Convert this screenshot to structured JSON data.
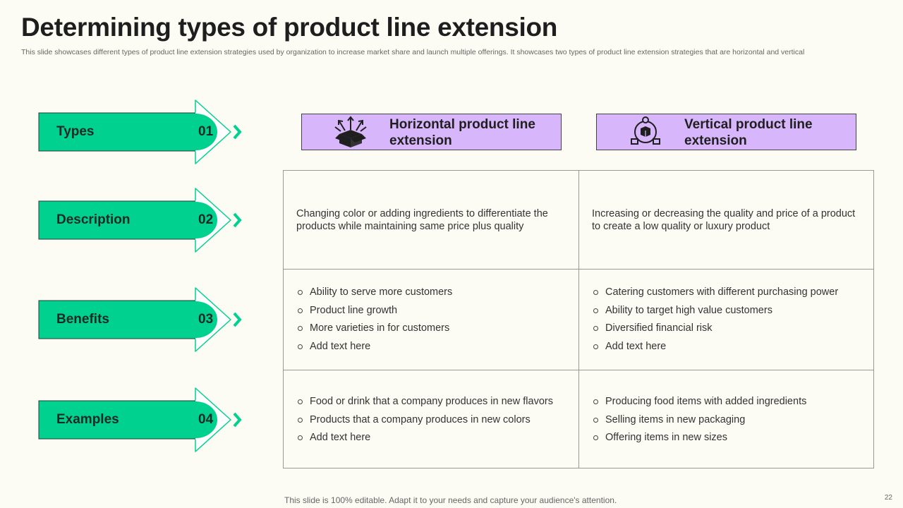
{
  "title": "Determining types of product line extension",
  "subtitle": "This slide showcases different types of product line extension strategies used by organization to increase market share and launch multiple offerings. It showcases two types of product line extension strategies that are horizontal and vertical",
  "row_labels": [
    {
      "label": "Types",
      "number": "01"
    },
    {
      "label": "Description",
      "number": "02"
    },
    {
      "label": "Benefits",
      "number": "03"
    },
    {
      "label": "Examples",
      "number": "04"
    }
  ],
  "columns": [
    {
      "heading": "Horizontal product line extension",
      "icon": "box-arrows-icon",
      "description": "Changing color or adding ingredients to differentiate the products while maintaining same price plus quality",
      "benefits": [
        "Ability to serve more customers",
        "Product line growth",
        "More varieties in for customers",
        "Add text here"
      ],
      "examples": [
        "Food or drink that a company produces in new flavors",
        "Products that a company produces in new colors",
        "Add text here"
      ]
    },
    {
      "heading": "Vertical product line extension",
      "icon": "product-network-icon",
      "description": "Increasing or decreasing the quality and price of a product to create a low quality or luxury product",
      "benefits": [
        "Catering customers with different purchasing power",
        "Ability to target high value customers",
        "Diversified financial risk",
        "Add text here"
      ],
      "examples": [
        "Producing food items with added ingredients",
        "Selling items in new packaging",
        "Offering items in new sizes"
      ]
    }
  ],
  "footer": "This slide is 100% editable. Adapt it to your needs and capture your audience's attention.",
  "page_number": "22",
  "colors": {
    "accent_green": "#00d18f",
    "header_purple": "#d8b6fb",
    "background": "#fcfcf5"
  }
}
